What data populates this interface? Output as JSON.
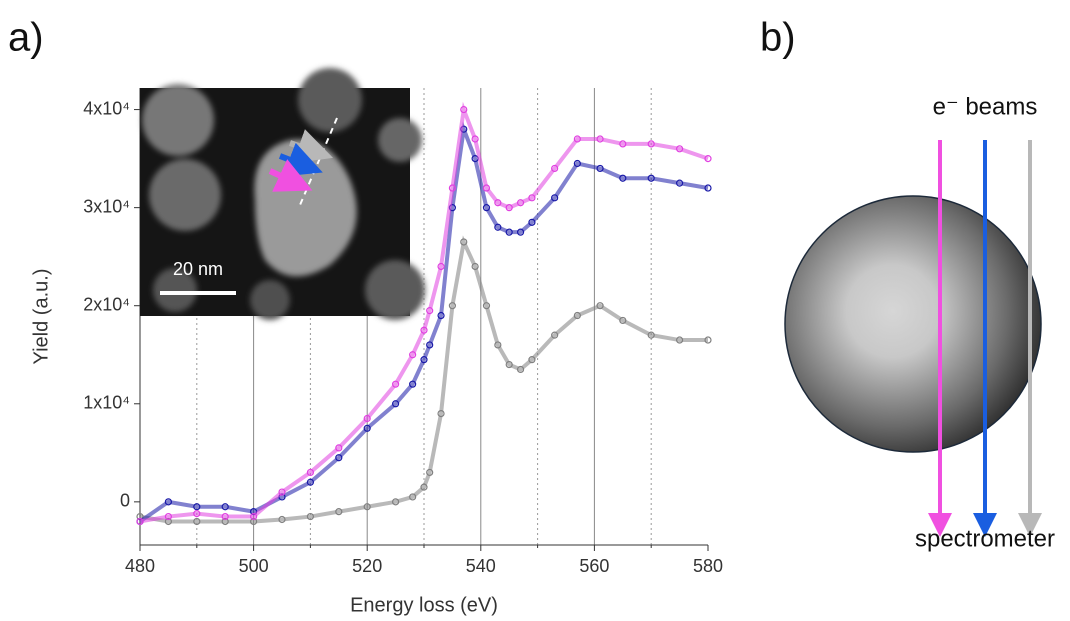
{
  "panels": {
    "a": "a)",
    "b": "b)"
  },
  "inset": {
    "scale_bar": "20 nm"
  },
  "diagram": {
    "beam_label": "e⁻ beams",
    "detector_label": "spectrometer"
  },
  "chart_data": {
    "type": "scatter",
    "x_label": "Energy loss (eV)",
    "y_label": "Yield (a.u.)",
    "x": [
      480,
      485,
      490,
      495,
      500,
      505,
      510,
      515,
      520,
      525,
      528,
      530,
      531,
      533,
      535,
      537,
      539,
      541,
      543,
      545,
      547,
      549,
      553,
      557,
      561,
      565,
      570,
      575,
      580
    ],
    "series": [
      {
        "name": "magenta",
        "color": "#e040e0",
        "values": [
          -2000,
          -1500,
          -1200,
          -1500,
          -1500,
          1000,
          3000,
          5500,
          8500,
          12000,
          15000,
          17500,
          19500,
          24000,
          32000,
          40000,
          37000,
          32000,
          30500,
          30000,
          30500,
          31000,
          34000,
          37000,
          37000,
          36500,
          36500,
          36000,
          35000
        ]
      },
      {
        "name": "blue",
        "color": "#1a1aa8",
        "values": [
          -2000,
          0,
          -500,
          -500,
          -1000,
          500,
          2000,
          4500,
          7500,
          10000,
          12000,
          14500,
          16000,
          19000,
          30000,
          38000,
          35000,
          30000,
          28000,
          27500,
          27500,
          28500,
          31000,
          34500,
          34000,
          33000,
          33000,
          32500,
          32000
        ]
      },
      {
        "name": "gray",
        "color": "#808080",
        "values": [
          -1500,
          -2000,
          -2000,
          -2000,
          -2000,
          -1800,
          -1500,
          -1000,
          -500,
          0,
          500,
          1500,
          3000,
          9000,
          20000,
          26500,
          24000,
          20000,
          16000,
          14000,
          13500,
          14500,
          17000,
          19000,
          20000,
          18500,
          17000,
          16500,
          16500
        ]
      }
    ],
    "xlim": [
      480,
      580
    ],
    "ylim": [
      -4400,
      42200
    ],
    "xticks": [
      480,
      500,
      520,
      540,
      560,
      580
    ],
    "xminorticks": [
      490,
      510,
      530,
      550,
      570
    ],
    "yticks": [
      0,
      {
        "value": 10000,
        "label": "1x10⁴"
      },
      {
        "value": 20000,
        "label": "2x10⁴"
      },
      {
        "value": 30000,
        "label": "3x10⁴"
      },
      {
        "value": 40000,
        "label": "4x10⁴"
      }
    ],
    "grid": true
  }
}
